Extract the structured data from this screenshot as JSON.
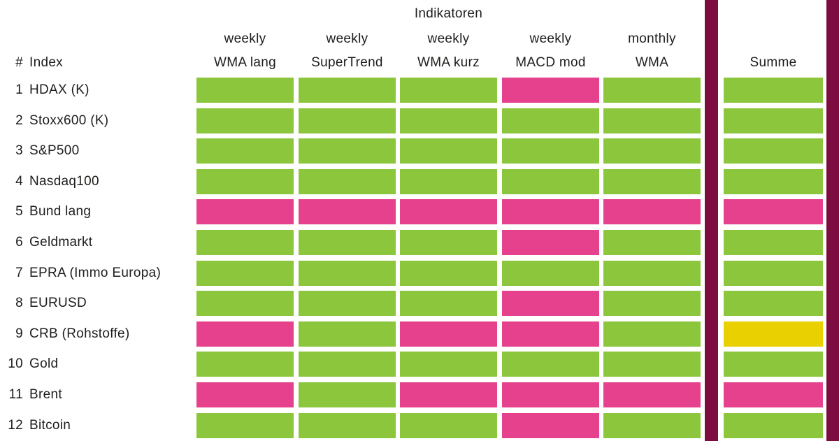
{
  "colors": {
    "bullish": "#8CC63C",
    "bearish": "#E5418C",
    "neutral": "#E9D000",
    "divider": "#7D0D40"
  },
  "index_header": {
    "hash": "#",
    "label": "Index"
  },
  "chart_data": {
    "type": "heatmap",
    "title": "Indikatoren",
    "columns": [
      {
        "id": "wma-lang",
        "period": "weekly",
        "name": "WMA lang"
      },
      {
        "id": "supertrend",
        "period": "weekly",
        "name": "SuperTrend"
      },
      {
        "id": "wma-kurz",
        "period": "weekly",
        "name": "WMA kurz"
      },
      {
        "id": "macd-mod",
        "period": "weekly",
        "name": "MACD mod"
      },
      {
        "id": "monthly-wma",
        "period": "monthly",
        "name": "WMA"
      }
    ],
    "summe_label": "Summe",
    "legend": {
      "green": "bullish",
      "pink": "bearish",
      "yellow": "neutral"
    },
    "rows": [
      {
        "num": "1",
        "label": "HDAX (K)",
        "cells": [
          "bullish",
          "bullish",
          "bullish",
          "bearish",
          "bullish"
        ],
        "summe": "bullish"
      },
      {
        "num": "2",
        "label": "Stoxx600 (K)",
        "cells": [
          "bullish",
          "bullish",
          "bullish",
          "bullish",
          "bullish"
        ],
        "summe": "bullish"
      },
      {
        "num": "3",
        "label": "S&P500",
        "cells": [
          "bullish",
          "bullish",
          "bullish",
          "bullish",
          "bullish"
        ],
        "summe": "bullish"
      },
      {
        "num": "4",
        "label": "Nasdaq100",
        "cells": [
          "bullish",
          "bullish",
          "bullish",
          "bullish",
          "bullish"
        ],
        "summe": "bullish"
      },
      {
        "num": "5",
        "label": "Bund lang",
        "cells": [
          "bearish",
          "bearish",
          "bearish",
          "bearish",
          "bearish"
        ],
        "summe": "bearish"
      },
      {
        "num": "6",
        "label": "Geldmarkt",
        "cells": [
          "bullish",
          "bullish",
          "bullish",
          "bearish",
          "bullish"
        ],
        "summe": "bullish"
      },
      {
        "num": "7",
        "label": "EPRA (Immo Europa)",
        "cells": [
          "bullish",
          "bullish",
          "bullish",
          "bullish",
          "bullish"
        ],
        "summe": "bullish"
      },
      {
        "num": "8",
        "label": "EURUSD",
        "cells": [
          "bullish",
          "bullish",
          "bullish",
          "bearish",
          "bullish"
        ],
        "summe": "bullish"
      },
      {
        "num": "9",
        "label": "CRB (Rohstoffe)",
        "cells": [
          "bearish",
          "bullish",
          "bearish",
          "bearish",
          "bullish"
        ],
        "summe": "neutral"
      },
      {
        "num": "10",
        "label": "Gold",
        "cells": [
          "bullish",
          "bullish",
          "bullish",
          "bullish",
          "bullish"
        ],
        "summe": "bullish"
      },
      {
        "num": "11",
        "label": "Brent",
        "cells": [
          "bearish",
          "bullish",
          "bearish",
          "bearish",
          "bearish"
        ],
        "summe": "bearish"
      },
      {
        "num": "12",
        "label": "Bitcoin",
        "cells": [
          "bullish",
          "bullish",
          "bullish",
          "bearish",
          "bullish"
        ],
        "summe": "bullish"
      }
    ]
  }
}
